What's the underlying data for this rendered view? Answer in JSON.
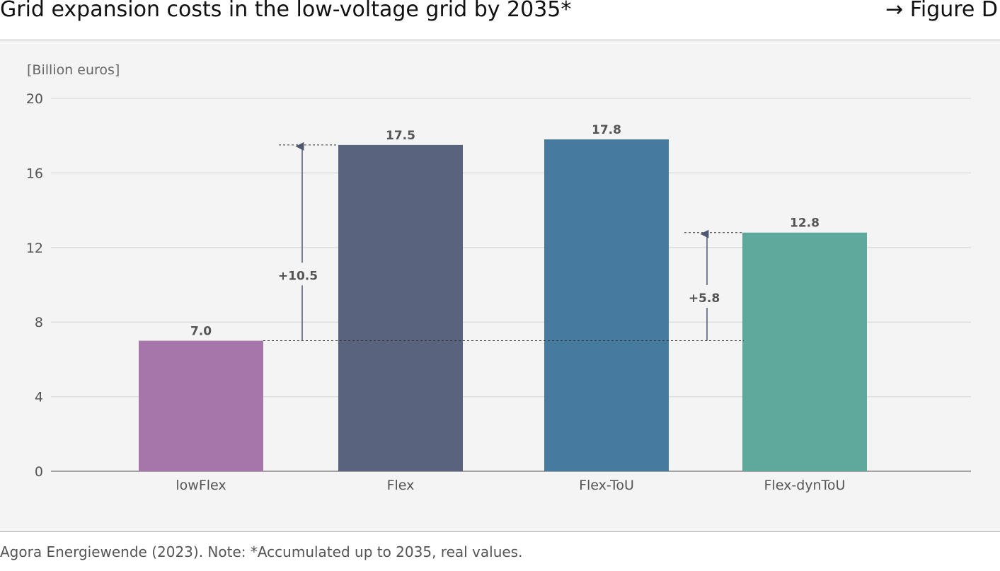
{
  "header": {
    "title": "Grid expansion costs in the low-voltage grid by 2035*",
    "figure_ref": "→ Figure D"
  },
  "footer": {
    "source": "Agora Energiewende (2023). Note: *Accumulated up to 2035, real values."
  },
  "chart_data": {
    "type": "bar",
    "unit_label": "[Billion euros]",
    "categories": [
      "lowFlex",
      "Flex",
      "Flex-ToU",
      "Flex-dynToU"
    ],
    "values": [
      7.0,
      17.5,
      17.8,
      12.8
    ],
    "value_labels": [
      "7.0",
      "17.5",
      "17.8",
      "12.8"
    ],
    "colors": [
      "#a676ab",
      "#59637d",
      "#467a9f",
      "#5ea99c"
    ],
    "ylim": [
      0,
      20
    ],
    "yticks": [
      0,
      4,
      8,
      12,
      16,
      20
    ],
    "grid": true,
    "annotations": [
      {
        "label": "+10.5",
        "from_value": 7.0,
        "to_value": 17.5,
        "placement": "between lowFlex and Flex"
      },
      {
        "label": "+5.8",
        "from_value": 7.0,
        "to_value": 12.8,
        "placement": "between Flex-ToU and Flex-dynToU"
      }
    ],
    "reference_line_value": 7.0,
    "annotation_color": "#4e5873"
  }
}
